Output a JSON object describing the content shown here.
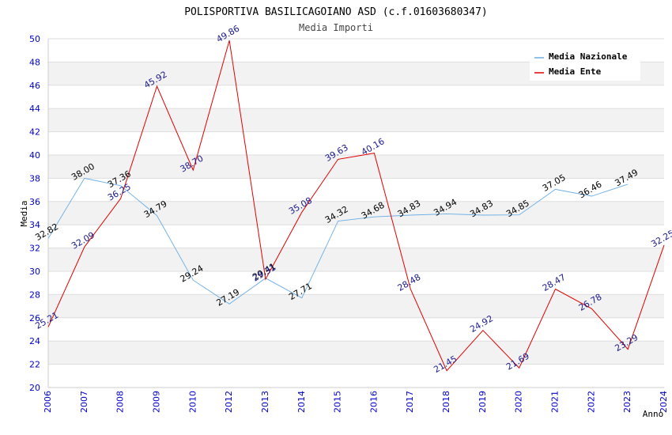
{
  "chart_data": {
    "type": "line",
    "title": "POLISPORTIVA BASILICAGOIANO ASD (c.f.01603680347)",
    "subtitle": "Media Importi",
    "xlabel": "Anno",
    "ylabel": "Media",
    "ylim": [
      20,
      50
    ],
    "yticks": [
      20,
      22,
      24,
      26,
      28,
      30,
      32,
      34,
      36,
      38,
      40,
      42,
      44,
      46,
      48,
      50
    ],
    "categories": [
      "2006",
      "2007",
      "2008",
      "2009",
      "2010",
      "2012",
      "2013",
      "2014",
      "2015",
      "2016",
      "2017",
      "2018",
      "2019",
      "2020",
      "2021",
      "2022",
      "2023",
      "2024"
    ],
    "legend_position": "top-right",
    "series": [
      {
        "name": "Media Nazionale",
        "color": "#6aaee6",
        "values": [
          32.82,
          38.0,
          37.36,
          34.79,
          29.24,
          27.19,
          29.41,
          27.71,
          34.32,
          34.68,
          34.83,
          34.94,
          34.83,
          34.85,
          37.05,
          36.46,
          37.49,
          null
        ],
        "labels": [
          "32.82",
          "38.00",
          "37.36",
          "34.79",
          "29.24",
          "27.19",
          "29.41",
          "27.71",
          "34.32",
          "34.68",
          "34.83",
          "34.94",
          "34.83",
          "34.85",
          "37.05",
          "36.46",
          "37.49",
          ""
        ]
      },
      {
        "name": "Media Ente",
        "color": "#e00000",
        "values": [
          25.21,
          32.09,
          36.25,
          45.92,
          38.7,
          49.86,
          29.31,
          35.08,
          39.63,
          40.16,
          28.48,
          21.45,
          24.92,
          21.69,
          28.47,
          26.78,
          23.29,
          32.25
        ],
        "labels": [
          "25.21",
          "32.09",
          "36.25",
          "45.92",
          "38.70",
          "49.86",
          "29.31",
          "35.08",
          "39.63",
          "40.16",
          "28.48",
          "21.45",
          "24.92",
          "21.69",
          "28.47",
          "26.78",
          "23.29",
          "32.25"
        ]
      }
    ]
  }
}
